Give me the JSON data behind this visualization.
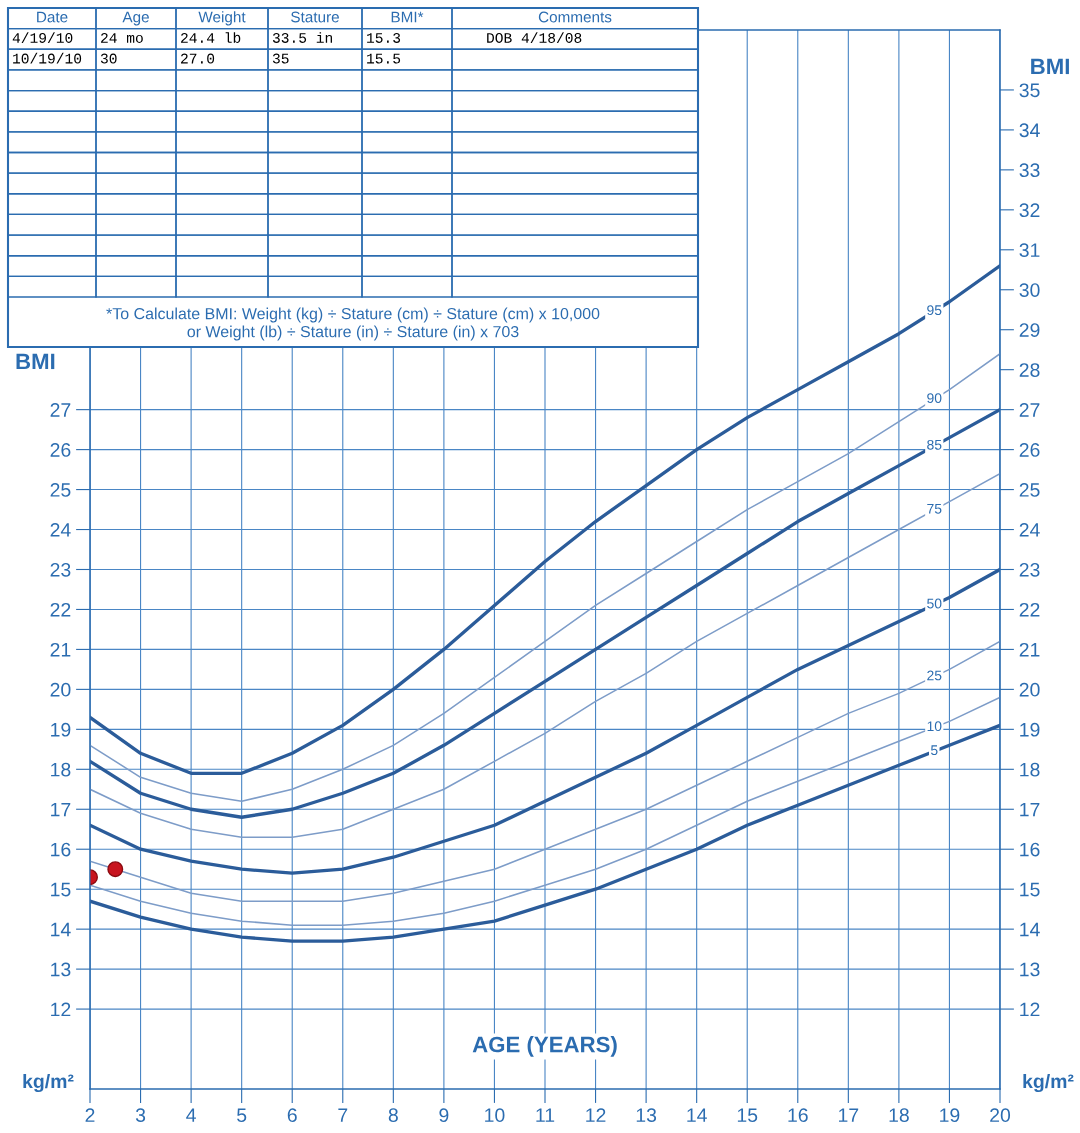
{
  "chart_data": {
    "type": "line",
    "xlabel": "AGE (YEARS)",
    "ylabel": "BMI",
    "y2label": "BMI",
    "x": [
      2,
      3,
      4,
      5,
      6,
      7,
      8,
      9,
      10,
      11,
      12,
      13,
      14,
      15,
      16,
      17,
      18,
      19,
      20
    ],
    "series": [
      {
        "name": "95",
        "color": "#2b5c9a",
        "values": [
          19.3,
          18.4,
          17.9,
          17.9,
          18.4,
          19.1,
          20.0,
          21.0,
          22.1,
          23.2,
          24.2,
          25.1,
          26.0,
          26.8,
          27.5,
          28.2,
          28.9,
          29.7,
          30.6
        ]
      },
      {
        "name": "90",
        "color": "#7d9cc8",
        "values": [
          18.6,
          17.8,
          17.4,
          17.2,
          17.5,
          18.0,
          18.6,
          19.4,
          20.3,
          21.2,
          22.1,
          22.9,
          23.7,
          24.5,
          25.2,
          25.9,
          26.7,
          27.5,
          28.4
        ]
      },
      {
        "name": "85",
        "color": "#2b5c9a",
        "values": [
          18.2,
          17.4,
          17.0,
          16.8,
          17.0,
          17.4,
          17.9,
          18.6,
          19.4,
          20.2,
          21.0,
          21.8,
          22.6,
          23.4,
          24.2,
          24.9,
          25.6,
          26.3,
          27.0
        ]
      },
      {
        "name": "75",
        "color": "#7d9cc8",
        "values": [
          17.5,
          16.9,
          16.5,
          16.3,
          16.3,
          16.5,
          17.0,
          17.5,
          18.2,
          18.9,
          19.7,
          20.4,
          21.2,
          21.9,
          22.6,
          23.3,
          24.0,
          24.7,
          25.4
        ]
      },
      {
        "name": "50",
        "color": "#2b5c9a",
        "values": [
          16.6,
          16.0,
          15.7,
          15.5,
          15.4,
          15.5,
          15.8,
          16.2,
          16.6,
          17.2,
          17.8,
          18.4,
          19.1,
          19.8,
          20.5,
          21.1,
          21.7,
          22.3,
          23.0
        ]
      },
      {
        "name": "25",
        "color": "#7d9cc8",
        "values": [
          15.7,
          15.3,
          14.9,
          14.7,
          14.7,
          14.7,
          14.9,
          15.2,
          15.5,
          16.0,
          16.5,
          17.0,
          17.6,
          18.2,
          18.8,
          19.4,
          19.9,
          20.5,
          21.2
        ]
      },
      {
        "name": "10",
        "color": "#7d9cc8",
        "values": [
          15.1,
          14.7,
          14.4,
          14.2,
          14.1,
          14.1,
          14.2,
          14.4,
          14.7,
          15.1,
          15.5,
          16.0,
          16.6,
          17.2,
          17.7,
          18.2,
          18.7,
          19.2,
          19.8
        ]
      },
      {
        "name": "5",
        "color": "#2b5c9a",
        "values": [
          14.7,
          14.3,
          14.0,
          13.8,
          13.7,
          13.7,
          13.8,
          14.0,
          14.2,
          14.6,
          15.0,
          15.5,
          16.0,
          16.6,
          17.1,
          17.6,
          18.1,
          18.6,
          19.1
        ]
      },
      {
        "type": "scatter",
        "x": [
          2,
          2.5
        ],
        "color": "#c8141e",
        "values": [
          15.3,
          15.5
        ]
      }
    ],
    "xlim": [
      2,
      20
    ],
    "xticks": [
      2,
      3,
      4,
      5,
      6,
      7,
      8,
      9,
      10,
      11,
      12,
      13,
      14,
      15,
      16,
      17,
      18,
      19,
      20
    ],
    "ylim": [
      10,
      36.5
    ],
    "yticks": [
      12,
      13,
      14,
      15,
      16,
      17,
      18,
      19,
      20,
      21,
      22,
      23,
      24,
      25,
      26,
      27
    ],
    "y2lim": [
      10,
      36.5
    ],
    "y2ticks": [
      12,
      13,
      14,
      15,
      16,
      17,
      18,
      19,
      20,
      21,
      22,
      23,
      24,
      25,
      26,
      27,
      28,
      29,
      30,
      31,
      32,
      33,
      34,
      35
    ],
    "grid": true,
    "line_style": "solid",
    "annotations": [
      "Date",
      "Age",
      "Weight",
      "Stature",
      "BMI*",
      "Comments",
      "4/19/10",
      "24 mo",
      "24.4 lb",
      "33.5 in",
      "15.3",
      "DOB 4/18/08",
      "10/19/10",
      "30",
      "27.0",
      "35",
      "15.5",
      "*To Calculate BMI: Weight (kg) ÷ Stature (cm) ÷ Stature (cm) x 10,000",
      "or Weight (lb) ÷ Stature (in) ÷ Stature (in) x 703",
      "kg/m²",
      "kg/m²"
    ]
  }
}
